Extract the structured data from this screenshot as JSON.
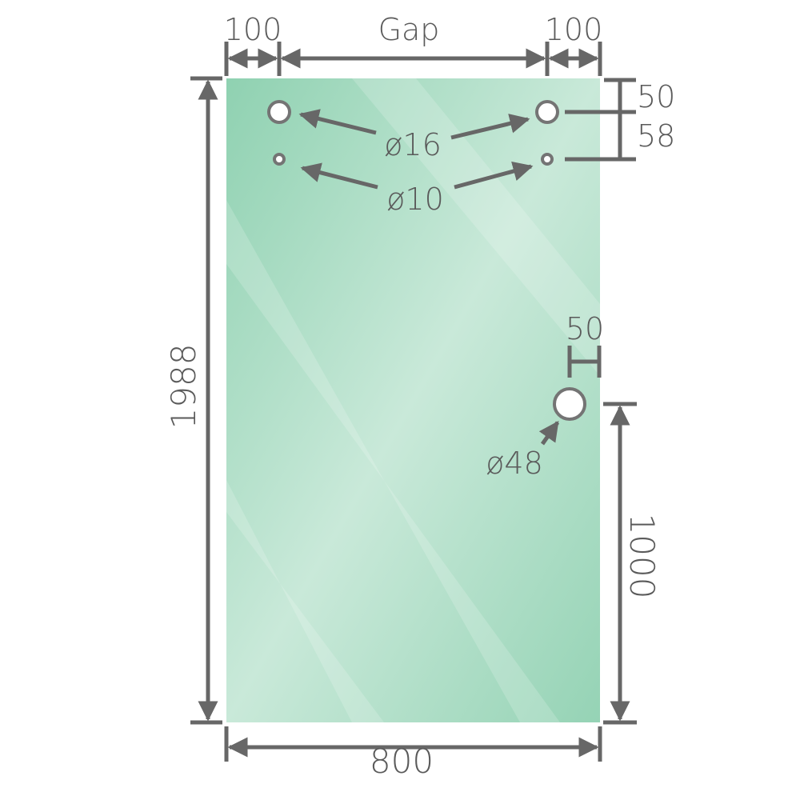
{
  "labels": {
    "left_margin": "100",
    "gap": "Gap",
    "right_margin": "100",
    "top_offset": "50",
    "hole_spacing": "58",
    "large_hole_diameter": "ø16",
    "small_hole_diameter": "ø10",
    "handle_edge_offset": "50",
    "handle_hole_diameter": "ø48",
    "height": "1988",
    "handle_height": "1000",
    "width": "800"
  },
  "colors": {
    "glass_dark": "#8fd1b1",
    "glass_light": "#c9e9d9",
    "dimension_line": "#676767"
  }
}
